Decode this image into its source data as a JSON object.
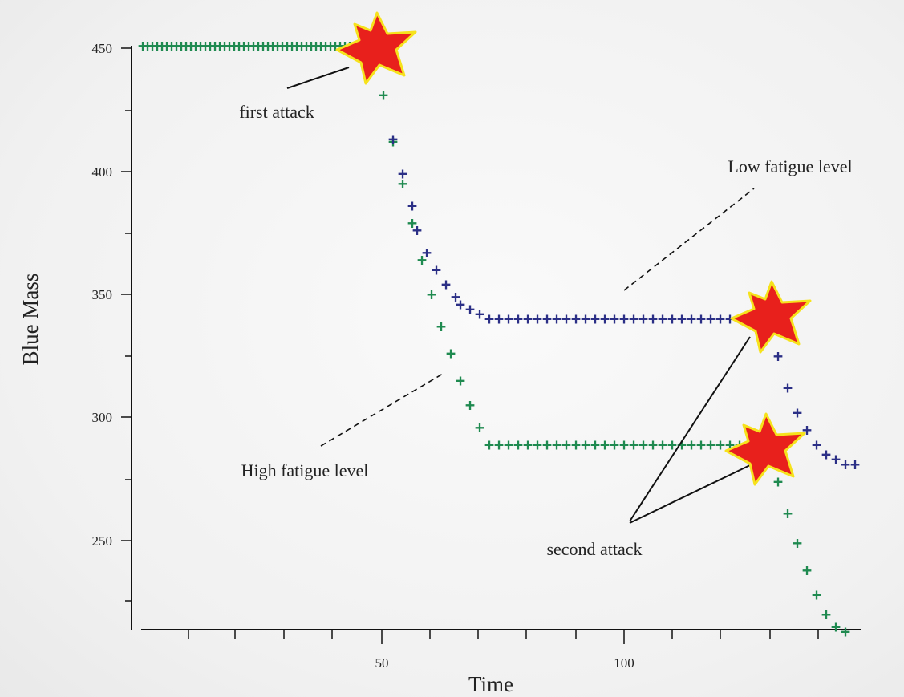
{
  "colors": {
    "high_fatigue": "#1f8a50",
    "low_fatigue": "#2b2f86",
    "burst_fill": "#e8201c",
    "burst_stroke": "#f6e21c",
    "axis": "#111111"
  },
  "chart_data": {
    "type": "scatter",
    "xlabel": "Time",
    "ylabel": "Blue Mass",
    "xlim": [
      1,
      149
    ],
    "ylim": [
      213,
      452
    ],
    "x_tick_labels": [
      "50",
      "100"
    ],
    "y_tick_labels": [
      "450",
      "400",
      "350",
      "300",
      "250"
    ],
    "grid": false,
    "marker": "+",
    "series": [
      {
        "key": "high",
        "color_key": "high_fatigue",
        "x": [
          1,
          2,
          3,
          4,
          5,
          6,
          7,
          8,
          9,
          10,
          11,
          12,
          13,
          14,
          15,
          16,
          17,
          18,
          19,
          20,
          21,
          22,
          23,
          24,
          25,
          26,
          27,
          28,
          29,
          30,
          31,
          32,
          33,
          34,
          35,
          36,
          37,
          38,
          39,
          40,
          41,
          42,
          43,
          44,
          45,
          46,
          47,
          48,
          49,
          50,
          51,
          53,
          55,
          57,
          59,
          61,
          63,
          65,
          67,
          69,
          71,
          73,
          75,
          77,
          79,
          81,
          83,
          85,
          87,
          89,
          91,
          93,
          95,
          97,
          99,
          101,
          103,
          105,
          107,
          109,
          111,
          113,
          115,
          117,
          119,
          121,
          123,
          125,
          127,
          129,
          131,
          133,
          135,
          137,
          139,
          141,
          143,
          145,
          147
        ],
        "y": [
          451,
          451,
          451,
          451,
          451,
          451,
          451,
          451,
          451,
          451,
          451,
          451,
          451,
          451,
          451,
          451,
          451,
          451,
          451,
          451,
          451,
          451,
          451,
          451,
          451,
          451,
          451,
          451,
          451,
          451,
          451,
          451,
          451,
          451,
          451,
          451,
          451,
          451,
          451,
          451,
          451,
          451,
          451,
          451,
          451,
          451,
          451,
          451,
          451,
          451,
          431,
          412,
          395,
          379,
          364,
          350,
          337,
          326,
          315,
          305,
          296,
          289,
          289,
          289,
          289,
          289,
          289,
          289,
          289,
          289,
          289,
          289,
          289,
          289,
          289,
          289,
          289,
          289,
          289,
          289,
          289,
          289,
          289,
          289,
          289,
          289,
          289,
          289,
          289,
          289,
          289,
          274,
          261,
          249,
          238,
          228,
          220,
          215,
          213
        ]
      },
      {
        "key": "low",
        "color_key": "low_fatigue",
        "x": [
          53,
          55,
          57,
          58,
          60,
          62,
          64,
          66,
          67,
          69,
          71,
          73,
          75,
          77,
          79,
          81,
          83,
          85,
          87,
          89,
          91,
          93,
          95,
          97,
          99,
          101,
          103,
          105,
          107,
          109,
          111,
          113,
          115,
          117,
          119,
          121,
          123,
          125,
          127,
          129,
          131,
          133,
          135,
          137,
          139,
          141,
          143,
          145,
          147,
          149
        ],
        "y": [
          413,
          399,
          386,
          376,
          367,
          360,
          354,
          349,
          346,
          344,
          342,
          340,
          340,
          340,
          340,
          340,
          340,
          340,
          340,
          340,
          340,
          340,
          340,
          340,
          340,
          340,
          340,
          340,
          340,
          340,
          340,
          340,
          340,
          340,
          340,
          340,
          340,
          340,
          340,
          340,
          340,
          325,
          312,
          302,
          295,
          289,
          285,
          283,
          281,
          281
        ]
      }
    ],
    "annotations": [
      "first attack",
      "Low fatigue level",
      "High fatigue level",
      "second attack"
    ]
  }
}
